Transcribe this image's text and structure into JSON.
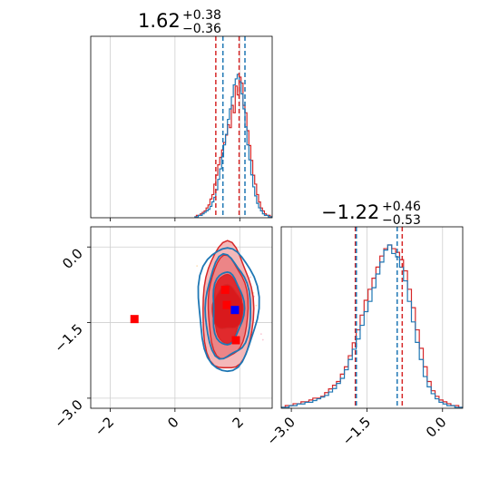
{
  "chart_data": {
    "type": "corner",
    "parameters": [
      {
        "median": 1.62,
        "err_plus": 0.38,
        "err_minus": 0.36,
        "title_main": "1.62",
        "title_sup": "+0.38",
        "title_sub": "−0.36",
        "range": [
          -2.6,
          3.0
        ],
        "ticks": [
          -2,
          0,
          2
        ],
        "tick_labels": [
          "−2",
          "0",
          "2"
        ]
      },
      {
        "median": -1.22,
        "err_plus": 0.46,
        "err_minus": 0.53,
        "title_main": "−1.22",
        "title_sup": "+0.46",
        "title_sub": "−0.53",
        "range": [
          -3.2,
          0.4
        ],
        "ticks": [
          -3.0,
          -1.5,
          0.0
        ],
        "tick_labels": [
          "−3.0",
          "−1.5",
          "0.0"
        ]
      }
    ],
    "series": [
      {
        "name": "",
        "color": "#d62728"
      },
      {
        "name": "",
        "color": "#1f77b4"
      }
    ],
    "quantile_lines": {
      "param1": {
        "red": [
          1.26,
          1.98
        ],
        "blue": [
          1.48,
          2.16
        ]
      },
      "param2": {
        "red": [
          -1.73,
          -0.8
        ],
        "blue": [
          -1.71,
          -0.9
        ]
      }
    },
    "scatter_x_vs_y": {
      "red_squares": [
        {
          "x": -1.25,
          "y": -1.43
        },
        {
          "x": 1.55,
          "y": -0.85
        },
        {
          "x": 1.6,
          "y": -1.15
        },
        {
          "x": 1.88,
          "y": -1.85
        }
      ],
      "blue_squares": [
        {
          "x": 1.85,
          "y": -1.25
        }
      ]
    },
    "hist1": {
      "bins_start": 0.6,
      "bins_end": 3.0,
      "red": [
        0,
        1,
        1,
        2,
        3,
        4,
        6,
        8,
        12,
        15,
        22,
        28,
        35,
        40,
        45,
        50,
        55,
        62,
        60,
        75,
        70,
        88,
        82,
        94,
        90,
        75,
        70,
        58,
        48,
        38,
        28,
        22,
        15,
        10,
        6,
        4,
        2,
        1,
        1,
        0
      ],
      "blue": [
        0,
        0,
        1,
        1,
        2,
        3,
        4,
        5,
        7,
        10,
        13,
        18,
        25,
        32,
        40,
        48,
        55,
        65,
        72,
        80,
        88,
        92,
        95,
        90,
        82,
        72,
        60,
        48,
        38,
        28,
        20,
        14,
        9,
        6,
        4,
        2,
        1,
        1,
        0,
        0
      ]
    },
    "hist2": {
      "bins_start": -3.2,
      "bins_end": 0.4,
      "red": [
        0,
        1,
        1,
        2,
        2,
        3,
        3,
        4,
        5,
        5,
        6,
        8,
        10,
        12,
        14,
        18,
        22,
        28,
        35,
        42,
        50,
        58,
        64,
        70,
        76,
        82,
        86,
        88,
        86,
        84,
        80,
        74,
        64,
        54,
        42,
        32,
        22,
        14,
        9,
        6,
        4,
        3,
        2,
        1,
        1,
        0
      ],
      "blue": [
        0,
        0,
        1,
        1,
        2,
        2,
        3,
        3,
        4,
        5,
        6,
        7,
        9,
        11,
        14,
        17,
        22,
        28,
        34,
        40,
        48,
        56,
        62,
        70,
        78,
        85,
        92,
        95,
        90,
        88,
        82,
        74,
        62,
        50,
        38,
        28,
        18,
        12,
        8,
        5,
        3,
        2,
        1,
        1,
        0,
        0
      ]
    }
  }
}
